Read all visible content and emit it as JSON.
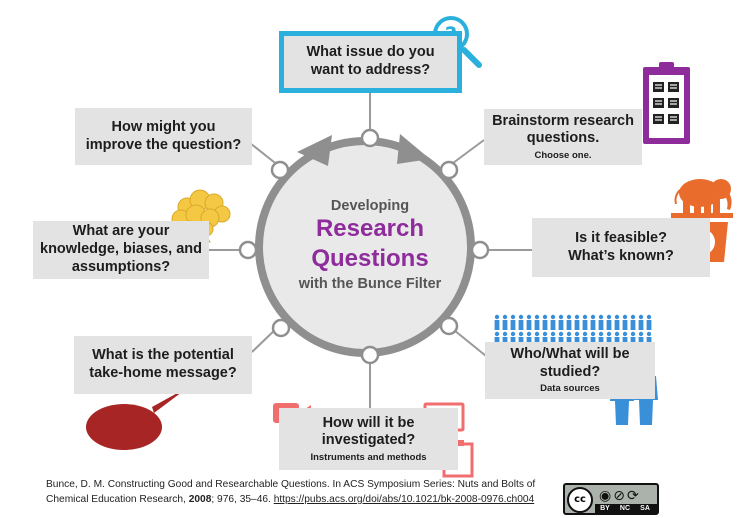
{
  "center": {
    "line1": "Developing",
    "line2": "Research",
    "line3": "Questions",
    "line4": "with the Bunce Filter"
  },
  "boxes": {
    "top": {
      "line1": "What issue do you",
      "line2": "want to address?"
    },
    "brainstorm": {
      "line1": "Brainstorm research",
      "line2": "questions.",
      "sub": "Choose one."
    },
    "feasible": {
      "line1": "Is it feasible?",
      "line2": "What’s known?"
    },
    "who": {
      "line1": "Who/What will be",
      "line2": "studied?",
      "sub": "Data sources"
    },
    "investigate": {
      "line1": "How will it be",
      "line2": "investigated?",
      "sub": "Instruments and methods"
    },
    "takehome": {
      "line1": "What is the potential",
      "line2": "take-home message?"
    },
    "knowledge": {
      "line1": "What are your",
      "line2": "knowledge, biases, and",
      "line3": "assumptions?"
    },
    "improve": {
      "line1": "How might you",
      "line2": "improve the question?"
    }
  },
  "citation": {
    "part1": "Bunce, D. M. Constructing Good and Researchable Questions. In ACS Symposium Series: Nuts and Bolts of Chemical Education Research, ",
    "year": "2008",
    "part2": "; 976, 35–46. ",
    "url": "https://pubs.acs.org/doi/abs/10.1021/bk-2008-0976.ch004"
  },
  "license": {
    "cc": "cc",
    "terms": [
      "BY",
      "NC",
      "SA"
    ]
  },
  "icons": [
    "magnifier-question-icon",
    "clipboard-checklist-icon",
    "elephant-scale-icon",
    "crowd-icon",
    "book-icon",
    "people-icon",
    "video-camera-icon",
    "gamepad-icon",
    "monitor-icon",
    "clipboard-icon",
    "speech-bubble-icon",
    "brain-icon",
    "pencil-icon",
    "refresh-icon"
  ],
  "colors": {
    "accent_purple": "#8e2c9c",
    "accent_blue": "#2bb0dd",
    "icon_blue": "#3a8fd9",
    "orange": "#ea6c2c",
    "red": "#a82525",
    "coral": "#f06e6e",
    "box_grey": "#e3e3e3",
    "ring_grey": "#8f8f8f"
  }
}
